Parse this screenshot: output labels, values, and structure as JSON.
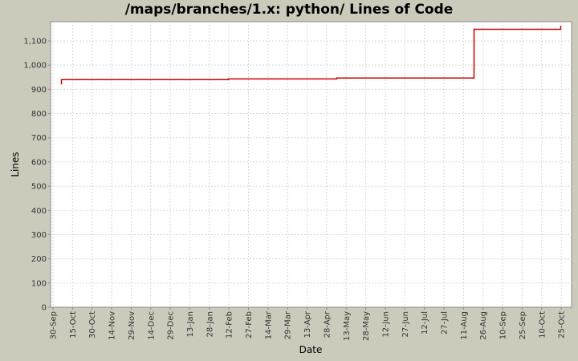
{
  "title": "/maps/branches/1.x: python/ Lines of Code",
  "colors": {
    "background": "#cccbbb",
    "plot_background": "#ffffff",
    "series": "#cc0000",
    "grid": "#d8d8d8"
  },
  "chart_data": {
    "type": "line",
    "title": "/maps/branches/1.x: python/ Lines of Code",
    "xlabel": "Date",
    "ylabel": "Lines",
    "ylim": [
      0,
      1175
    ],
    "yticks": [
      0,
      100,
      200,
      300,
      400,
      500,
      600,
      700,
      800,
      900,
      1000,
      1100
    ],
    "ytick_labels": [
      "0",
      "100",
      "200",
      "300",
      "400",
      "500",
      "600",
      "700",
      "800",
      "900",
      "1,000",
      "1,100"
    ],
    "xtick_labels": [
      "30-Sep",
      "15-Oct",
      "30-Oct",
      "14-Nov",
      "29-Nov",
      "14-Dec",
      "29-Dec",
      "13-Jan",
      "28-Jan",
      "12-Feb",
      "27-Feb",
      "14-Mar",
      "29-Mar",
      "13-Apr",
      "28-Apr",
      "13-May",
      "28-May",
      "12-Jun",
      "27-Jun",
      "12-Jul",
      "27-Jul",
      "11-Aug",
      "26-Aug",
      "10-Sep",
      "25-Sep",
      "10-Oct",
      "25-Oct"
    ],
    "grid": true,
    "legend": false,
    "series": [
      {
        "name": "Lines of Code",
        "step": true,
        "points": [
          {
            "x": "08-Oct",
            "y": 920
          },
          {
            "x": "08-Oct",
            "y": 940
          },
          {
            "x": "12-Feb",
            "y": 940
          },
          {
            "x": "12-Feb",
            "y": 943
          },
          {
            "x": "07-May",
            "y": 943
          },
          {
            "x": "07-May",
            "y": 947
          },
          {
            "x": "20-Aug",
            "y": 947
          },
          {
            "x": "20-Aug",
            "y": 1148
          },
          {
            "x": "25-Oct",
            "y": 1148
          },
          {
            "x": "25-Oct",
            "y": 1162
          }
        ]
      }
    ]
  }
}
